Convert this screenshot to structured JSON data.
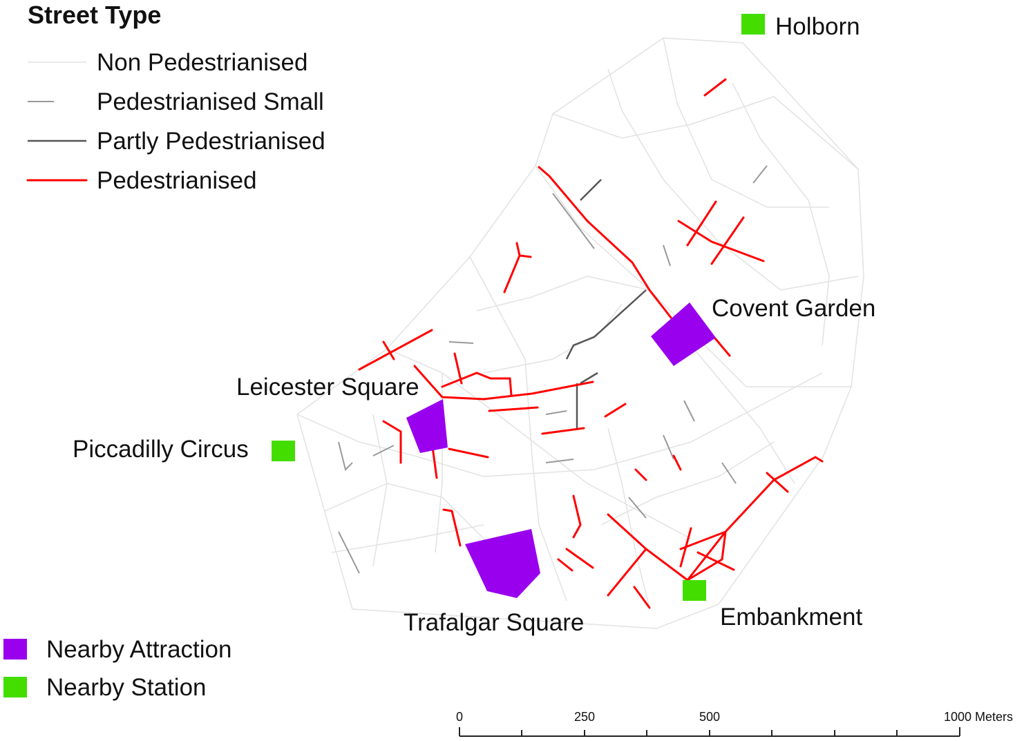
{
  "legend": {
    "title": "Street Type",
    "items": [
      {
        "label": "Non Pedestrianised"
      },
      {
        "label": "Pedestrianised Small"
      },
      {
        "label": "Partly Pedestrianised"
      },
      {
        "label": "Pedestrianised"
      }
    ]
  },
  "symbol_legend": [
    {
      "label": "Nearby Attraction"
    },
    {
      "label": "Nearby Station"
    }
  ],
  "places": {
    "holborn": "Holborn",
    "covent_garden": "Covent Garden",
    "leicester_square": "Leicester Square",
    "piccadilly_circus": "Piccadilly Circus",
    "trafalgar_square": "Trafalgar Square",
    "embankment": "Embankment"
  },
  "scale_bar": {
    "labels": [
      "0",
      "250",
      "500",
      "1000 Meters"
    ]
  }
}
